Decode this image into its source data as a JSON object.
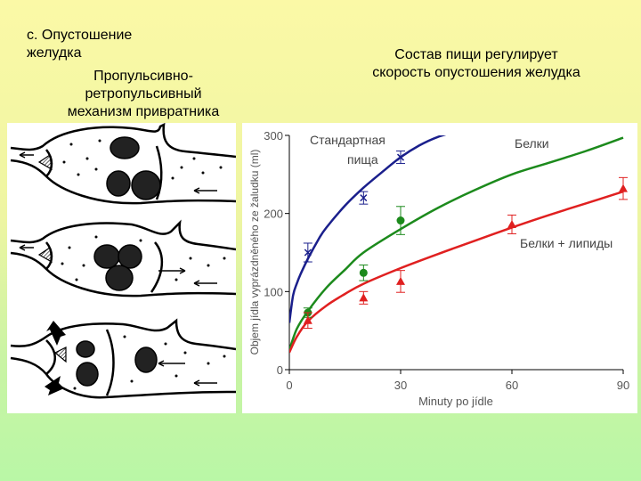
{
  "left_heading": [
    "c.  Опустошение",
    "желудка"
  ],
  "left_subtitle": [
    "Пропульсивно-",
    "ретропульсивный",
    "механизм привратника"
  ],
  "right_heading": [
    "Состав пищи регулирует",
    "скорость опустошения желудка"
  ],
  "colors": {
    "standard": "#1a1f8c",
    "protein": "#1c8a1c",
    "protein_lipid": "#e02020"
  },
  "chart_data": {
    "type": "line",
    "xlabel": "Minuty po jídle",
    "ylabel": "Objem jídla vyprázdněného ze žaludku (ml)",
    "xlim": [
      0,
      90
    ],
    "ylim": [
      0,
      300
    ],
    "xticks": [
      "0",
      "30",
      "60",
      "90"
    ],
    "yticks": [
      "0",
      "100",
      "200",
      "300"
    ],
    "series": [
      {
        "name": "Стандартная пища",
        "label_lines": [
          "Стандартная",
          "пища"
        ],
        "color": "#1a1f8c",
        "marker": "x",
        "curve_x": [
          0,
          1,
          2,
          3,
          5,
          8,
          10,
          15,
          20,
          25,
          30,
          35,
          40,
          45
        ],
        "curve_y": [
          60,
          95,
          110,
          122,
          142,
          168,
          182,
          210,
          233,
          253,
          272,
          287,
          298,
          305
        ],
        "points": [
          {
            "x": 5,
            "y": 150,
            "err": 12
          },
          {
            "x": 20,
            "y": 220,
            "err": 8
          },
          {
            "x": 30,
            "y": 272,
            "err": 8
          }
        ]
      },
      {
        "name": "Белки",
        "label_lines": [
          "Белки"
        ],
        "color": "#1c8a1c",
        "marker": "circle",
        "curve_x": [
          0,
          2,
          5,
          10,
          15,
          20,
          30,
          40,
          50,
          60,
          70,
          80,
          90
        ],
        "curve_y": [
          25,
          52,
          75,
          105,
          128,
          150,
          180,
          207,
          230,
          250,
          265,
          280,
          297
        ],
        "points": [
          {
            "x": 5,
            "y": 73,
            "err": 6
          },
          {
            "x": 20,
            "y": 124,
            "err": 10
          },
          {
            "x": 30,
            "y": 191,
            "err": 18
          }
        ]
      },
      {
        "name": "Белки + липиды",
        "label_lines": [
          "Белки + липиды"
        ],
        "color": "#e02020",
        "marker": "triangle",
        "curve_x": [
          0,
          2,
          5,
          10,
          15,
          20,
          30,
          40,
          50,
          60,
          70,
          80,
          90
        ],
        "curve_y": [
          22,
          42,
          62,
          82,
          97,
          110,
          130,
          148,
          165,
          182,
          198,
          213,
          228
        ],
        "points": [
          {
            "x": 5,
            "y": 63,
            "err": 10
          },
          {
            "x": 20,
            "y": 92,
            "err": 8
          },
          {
            "x": 30,
            "y": 113,
            "err": 14
          },
          {
            "x": 60,
            "y": 186,
            "err": 12
          },
          {
            "x": 90,
            "y": 232,
            "err": 14
          }
        ]
      }
    ]
  }
}
